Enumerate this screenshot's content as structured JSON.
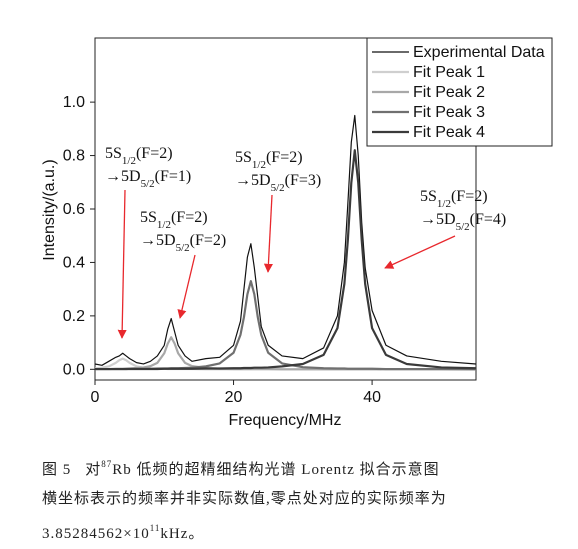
{
  "chart_data": {
    "type": "line",
    "xlabel": "Frequency/MHz",
    "ylabel": "Intensity/(a.u.)",
    "xlim": [
      0,
      55
    ],
    "ylim": [
      -0.04,
      1.24
    ],
    "xticks": [
      0,
      20,
      40
    ],
    "yticks": [
      {
        "value": 0,
        "label": "0.0"
      },
      0.2,
      0.4,
      0.6,
      0.8,
      {
        "value": 1,
        "label": "1.0"
      }
    ],
    "legend": "upper right",
    "x": [
      0,
      1,
      2,
      3,
      3.5,
      4,
      4.5,
      5,
      6,
      7,
      8,
      9,
      10,
      10.5,
      11,
      11.5,
      12,
      13,
      14,
      16,
      18,
      20,
      21,
      21.5,
      22,
      22.5,
      23,
      23.5,
      24,
      25,
      27,
      30,
      33,
      35,
      36,
      36.5,
      37,
      37.5,
      38,
      38.5,
      39,
      40,
      42,
      45,
      50,
      55
    ],
    "series": [
      {
        "name": "Experimental Data",
        "color": "#111111",
        "values": [
          0.02,
          0.015,
          0.03,
          0.045,
          0.05,
          0.06,
          0.05,
          0.04,
          0.025,
          0.02,
          0.03,
          0.05,
          0.09,
          0.15,
          0.19,
          0.14,
          0.09,
          0.05,
          0.03,
          0.04,
          0.045,
          0.09,
          0.18,
          0.3,
          0.42,
          0.47,
          0.38,
          0.27,
          0.16,
          0.09,
          0.05,
          0.04,
          0.08,
          0.2,
          0.4,
          0.62,
          0.85,
          0.95,
          0.8,
          0.55,
          0.38,
          0.22,
          0.09,
          0.05,
          0.03,
          0.02
        ]
      },
      {
        "name": "Fit Peak 1",
        "color": "#cfcfcf",
        "values": [
          0.003,
          0.006,
          0.011,
          0.024,
          0.034,
          0.04,
          0.034,
          0.024,
          0.011,
          0.006,
          0.003,
          0.002,
          0.002,
          0.001,
          0.001,
          0.001,
          0.001,
          0.001,
          0.001,
          0,
          0,
          0,
          0,
          0,
          0,
          0,
          0,
          0,
          0,
          0,
          0,
          0,
          0,
          0,
          0,
          0,
          0,
          0,
          0,
          0,
          0,
          0,
          0,
          0,
          0,
          0
        ]
      },
      {
        "name": "Fit Peak 2",
        "color": "#a8a8a8",
        "values": [
          0.001,
          0.001,
          0.001,
          0.002,
          0.002,
          0.002,
          0.003,
          0.003,
          0.005,
          0.007,
          0.012,
          0.024,
          0.06,
          0.096,
          0.12,
          0.096,
          0.06,
          0.024,
          0.012,
          0.005,
          0.002,
          0.001,
          0.001,
          0.001,
          0.001,
          0.001,
          0.001,
          0.001,
          0.001,
          0.001,
          0,
          0,
          0,
          0,
          0,
          0,
          0,
          0,
          0,
          0,
          0,
          0,
          0,
          0,
          0,
          0
        ]
      },
      {
        "name": "Fit Peak 3",
        "color": "#707070",
        "values": [
          0.001,
          0.001,
          0.001,
          0.001,
          0.001,
          0.001,
          0.001,
          0.002,
          0.002,
          0.002,
          0.002,
          0.003,
          0.003,
          0.003,
          0.004,
          0.004,
          0.004,
          0.005,
          0.006,
          0.011,
          0.022,
          0.062,
          0.129,
          0.195,
          0.281,
          0.33,
          0.281,
          0.195,
          0.129,
          0.062,
          0.022,
          0.008,
          0.004,
          0.003,
          0.003,
          0.002,
          0.002,
          0.002,
          0.002,
          0.002,
          0.002,
          0.002,
          0.001,
          0.001,
          0.001,
          0
        ]
      },
      {
        "name": "Fit Peak 4",
        "color": "#3a3a3a",
        "values": [
          0.001,
          0.001,
          0.001,
          0.001,
          0.001,
          0.001,
          0.001,
          0.001,
          0.001,
          0.001,
          0.001,
          0.001,
          0.002,
          0.002,
          0.002,
          0.002,
          0.002,
          0.002,
          0.002,
          0.003,
          0.003,
          0.004,
          0.004,
          0.005,
          0.005,
          0.005,
          0.006,
          0.006,
          0.006,
          0.007,
          0.011,
          0.02,
          0.054,
          0.154,
          0.32,
          0.484,
          0.698,
          0.82,
          0.698,
          0.484,
          0.32,
          0.154,
          0.054,
          0.02,
          0.007,
          0.004
        ]
      }
    ],
    "annotation_color": "#e8282d",
    "annotations": [
      {
        "line1": [
          "5S",
          "1/2",
          "(F=2)"
        ],
        "line2": [
          "→5D",
          "5/2",
          "(F=1)"
        ]
      },
      {
        "line1": [
          "5S",
          "1/2",
          "(F=2)"
        ],
        "line2": [
          "→5D",
          "5/2",
          "(F=2)"
        ]
      },
      {
        "line1": [
          "5S",
          "1/2",
          "(F=2)"
        ],
        "line2": [
          "→5D",
          "5/2",
          "(F=3)"
        ]
      },
      {
        "line1": [
          "5S",
          "1/2",
          "(F=2)"
        ],
        "line2": [
          "→5D",
          "5/2",
          "(F=4)"
        ]
      }
    ]
  },
  "caption": {
    "label": "图 5",
    "line1": [
      "对",
      "87",
      "Rb 低频的超精细结构光谱 Lorentz 拟合示意图"
    ],
    "line2": "横坐标表示的频率并非实际数值,零点处对应的实际频率为",
    "line3": [
      "3.85284562×10",
      "11",
      "kHz。"
    ]
  }
}
